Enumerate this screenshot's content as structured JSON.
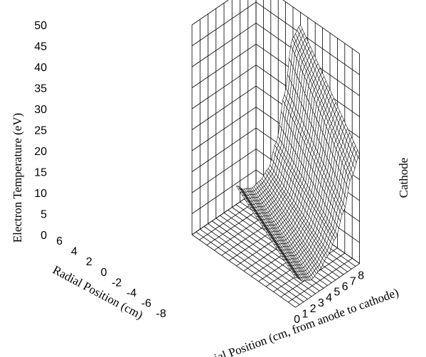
{
  "chart_data": {
    "type": "surface",
    "title": "",
    "ylabel": "Electron Temperature (eV)",
    "x_axis_label": "Axial Position (cm, from anode to cathode)",
    "radial_axis_label": "Radial Position (cm)",
    "side_label": "Cathode",
    "x_ticks": [
      "0",
      "1",
      "2",
      "3",
      "4",
      "5",
      "6",
      "7",
      "8"
    ],
    "radial_ticks": [
      "6",
      "4",
      "2",
      "0",
      "-2",
      "-4",
      "-6",
      "-8"
    ],
    "z_ticks": [
      "0",
      "5",
      "10",
      "15",
      "20",
      "25",
      "30",
      "35",
      "40",
      "45",
      "50"
    ],
    "xlim": [
      0,
      8
    ],
    "radial_lim": [
      -8,
      6
    ],
    "zlim": [
      0,
      50
    ],
    "grid": true,
    "surface_extent": {
      "axial": [
        0,
        8
      ],
      "radial": [
        -8,
        0
      ]
    },
    "surface_values": {
      "axial": [
        0,
        1,
        2,
        3,
        4,
        5,
        6,
        7,
        8
      ],
      "temperature_at_radial_0": [
        19,
        17,
        16,
        16.5,
        18,
        23,
        33,
        45,
        47
      ],
      "temperature_at_radial_minus_8": [
        7,
        5,
        4,
        5,
        7,
        10,
        15,
        22,
        26
      ]
    }
  }
}
